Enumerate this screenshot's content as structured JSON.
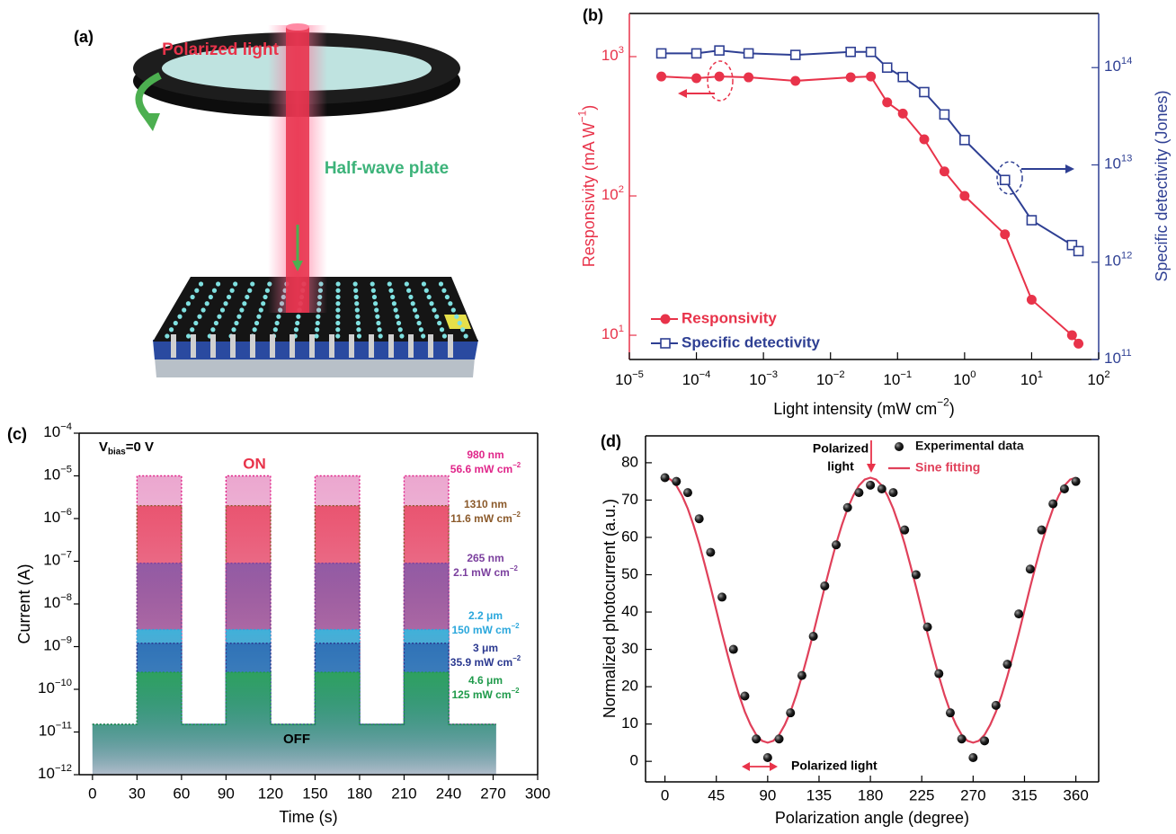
{
  "illustration": {
    "label": "(a)",
    "beam_label": "Polarized light",
    "plate_label": "Half-wave plate"
  },
  "chart_data": [
    {
      "type": "line",
      "label": "(b)",
      "xlabel": {
        "text": "Light intensity (mW cm",
        "sup": "−2",
        "end": ")"
      },
      "ylabel": {
        "text": "Responsivity (mA W",
        "sup": "−1",
        "end": ")"
      },
      "y2label": "Specific detectivity (Jones)",
      "xscale": "log",
      "yscale": "log",
      "y2scale": "log",
      "xlim": [
        1e-05,
        100
      ],
      "xticks": [
        {
          "value": 1e-05,
          "label": "10",
          "sup": "−5"
        },
        {
          "value": 0.0001,
          "label": "10",
          "sup": "−4"
        },
        {
          "value": 0.001,
          "label": "10",
          "sup": "−3"
        },
        {
          "value": 0.01,
          "label": "10",
          "sup": "−2"
        },
        {
          "value": 0.1,
          "label": "10",
          "sup": "−1"
        },
        {
          "value": 1,
          "label": "10",
          "sup": "0"
        },
        {
          "value": 10,
          "label": "10",
          "sup": "1"
        },
        {
          "value": 100,
          "label": "10",
          "sup": "2"
        }
      ],
      "ylim": [
        6.7,
        2040
      ],
      "yticks": [
        {
          "value": 10,
          "label": "10",
          "sup": "1"
        },
        {
          "value": 100,
          "label": "10",
          "sup": "2"
        },
        {
          "value": 1000,
          "label": "10",
          "sup": "3"
        }
      ],
      "y2lim": [
        100000000000.0,
        360000000000000.0
      ],
      "y2ticks": [
        {
          "value": 100000000000.0,
          "label": "10",
          "sup": "11"
        },
        {
          "value": 1000000000000.0,
          "label": "10",
          "sup": "12"
        },
        {
          "value": 10000000000000.0,
          "label": "10",
          "sup": "13"
        },
        {
          "value": 100000000000000.0,
          "label": "10",
          "sup": "14"
        }
      ],
      "ycolor": "#e8334a",
      "y2color": "#2e3f93",
      "legend": "lower left",
      "x": [
        3e-05,
        0.0001,
        0.00022,
        0.0006,
        0.003,
        0.02,
        0.04,
        0.07,
        0.12,
        0.25,
        0.5,
        1,
        4,
        10,
        40,
        50
      ],
      "series": [
        {
          "name": "Responsivity",
          "color": "#e8334a",
          "marker": "circle",
          "values": [
            720,
            700,
            720,
            710,
            670,
            710,
            720,
            470,
            390,
            255,
            150,
            100,
            53,
            18,
            10,
            8.7
          ]
        },
        {
          "name": "Specific detectivity",
          "color": "#2e3f93",
          "marker": "square",
          "axis": "y2",
          "values": [
            140000000000000.0,
            140000000000000.0,
            150000000000000.0,
            140000000000000.0,
            135000000000000.0,
            145000000000000.0,
            145000000000000.0,
            100000000000000.0,
            80000000000000.0,
            56000000000000.0,
            33000000000000.0,
            18000000000000.0,
            7000000000000.0,
            2700000000000.0,
            1500000000000.0,
            1300000000000.0
          ]
        }
      ]
    },
    {
      "type": "area",
      "label": "(c)",
      "xlabel": "Time (s)",
      "ylabel": "Current (A)",
      "yscale": "log",
      "xlim": [
        -9,
        300
      ],
      "xticks": [
        0,
        30,
        60,
        90,
        120,
        150,
        180,
        210,
        240,
        270,
        300
      ],
      "ylim": [
        1e-12,
        0.0001
      ],
      "yticks": [
        {
          "value": 1e-12,
          "label": "10",
          "sup": "−12"
        },
        {
          "value": 1e-11,
          "label": "10",
          "sup": "−11"
        },
        {
          "value": 1e-10,
          "label": "10",
          "sup": "−10"
        },
        {
          "value": 1e-09,
          "label": "10",
          "sup": "−9"
        },
        {
          "value": 1e-08,
          "label": "10",
          "sup": "−8"
        },
        {
          "value": 1e-07,
          "label": "10",
          "sup": "−7"
        },
        {
          "value": 1e-06,
          "label": "10",
          "sup": "−6"
        },
        {
          "value": 1e-05,
          "label": "10",
          "sup": "−5"
        },
        {
          "value": 0.0001,
          "label": "10",
          "sup": "−4"
        }
      ],
      "annotations": {
        "on": "ON",
        "off": "OFF",
        "bias": {
          "text": "V",
          "sub": "bias",
          "end": "=0 V"
        }
      },
      "x": [
        0,
        30,
        30,
        60,
        60,
        90,
        90,
        120,
        120,
        150,
        150,
        180,
        180,
        210,
        210,
        240,
        240,
        272
      ],
      "series": [
        {
          "name": "980 nm",
          "power": "56.6 mW cm",
          "power_sup": "−2",
          "color": "#eaa2cc",
          "label_color": "#e0268a",
          "values": [
            1.5e-11,
            1.5e-11,
            1e-05,
            1e-05,
            1.5e-11,
            1.5e-11,
            1e-05,
            1e-05,
            1.5e-11,
            1.5e-11,
            1e-05,
            1e-05,
            1.5e-11,
            1.5e-11,
            1e-05,
            1e-05,
            1.5e-11,
            1.5e-11
          ]
        },
        {
          "name": "1310 nm",
          "power": "11.6 mW cm",
          "power_sup": "−2",
          "color": "#e9506b",
          "label_color": "#8b5a2b",
          "values": [
            1.5e-11,
            1.5e-11,
            2e-06,
            2e-06,
            1.5e-11,
            1.5e-11,
            2e-06,
            2e-06,
            1.5e-11,
            1.5e-11,
            2e-06,
            2e-06,
            1.5e-11,
            1.5e-11,
            2e-06,
            2e-06,
            1.5e-11,
            1.5e-11
          ]
        },
        {
          "name": "265 nm",
          "power": "2.1 mW cm",
          "power_sup": "−2",
          "color": "#8d5aa6",
          "label_color": "#7b3f9e",
          "values": [
            1.5e-11,
            1.5e-11,
            9e-08,
            9e-08,
            1.5e-11,
            1.5e-11,
            9e-08,
            9e-08,
            1.5e-11,
            1.5e-11,
            9e-08,
            9e-08,
            1.5e-11,
            1.5e-11,
            9e-08,
            9e-08,
            1.5e-11,
            1.5e-11
          ]
        },
        {
          "name": "2.2 μm",
          "power": "150 mW cm",
          "power_sup": "−2",
          "color": "#3bb5dc",
          "label_color": "#2aa7dc",
          "values": [
            1.5e-11,
            1.5e-11,
            2.5e-09,
            2.5e-09,
            1.5e-11,
            1.5e-11,
            2.5e-09,
            2.5e-09,
            1.5e-11,
            1.5e-11,
            2.5e-09,
            2.5e-09,
            1.5e-11,
            1.5e-11,
            2.5e-09,
            2.5e-09,
            1.5e-11,
            1.5e-11
          ]
        },
        {
          "name": "3 μm",
          "power": "35.9 mW cm",
          "power_sup": "−2",
          "color": "#2f6fb5",
          "label_color": "#2b3990",
          "values": [
            1.5e-11,
            1.5e-11,
            1.2e-09,
            1.2e-09,
            1.5e-11,
            1.5e-11,
            1.2e-09,
            1.2e-09,
            1.5e-11,
            1.5e-11,
            1.2e-09,
            1.2e-09,
            1.5e-11,
            1.5e-11,
            1.2e-09,
            1.2e-09,
            1.5e-11,
            1.5e-11
          ]
        },
        {
          "name": "4.6 μm",
          "power": "125 mW cm",
          "power_sup": "−2",
          "color": "#2ea35a",
          "label_color": "#1e9a4a",
          "values": [
            1.5e-11,
            1.5e-11,
            2.5e-10,
            2.5e-10,
            1.5e-11,
            1.5e-11,
            2.5e-10,
            2.5e-10,
            1.5e-11,
            1.5e-11,
            2.5e-10,
            2.5e-10,
            1.5e-11,
            1.5e-11,
            2.5e-10,
            2.5e-10,
            1.5e-11,
            1.5e-11
          ]
        }
      ]
    },
    {
      "type": "scatter",
      "label": "(d)",
      "xlabel": "Polarization angle (degree)",
      "ylabel": "Normalized photocurrent (a.u.)",
      "xlim": [
        -17,
        380
      ],
      "xticks": [
        0,
        45,
        90,
        135,
        180,
        225,
        270,
        315,
        360
      ],
      "ylim": [
        -5.5,
        87.2
      ],
      "yticks": [
        0,
        10,
        20,
        30,
        40,
        50,
        60,
        70,
        80
      ],
      "legend": "upper right",
      "annotations": {
        "top": [
          "Polarized",
          "light"
        ],
        "bottom": "Polarized light"
      },
      "series": [
        {
          "name": "Experimental data",
          "type": "scatter",
          "color": "#111111",
          "x": [
            0,
            10,
            20,
            30,
            40,
            50,
            60,
            70,
            80,
            90,
            100,
            110,
            120,
            130,
            140,
            150,
            160,
            170,
            180,
            190,
            200,
            210,
            220,
            230,
            240,
            250,
            260,
            270,
            280,
            290,
            300,
            310,
            320,
            330,
            340,
            350,
            360
          ],
          "values": [
            76,
            75,
            72,
            65,
            56,
            44,
            30,
            17.5,
            6,
            1,
            6,
            13,
            23,
            33.5,
            47,
            58,
            68,
            72,
            74,
            73,
            72,
            62,
            50,
            36,
            23.5,
            13,
            6,
            1,
            5.5,
            15,
            26,
            39.5,
            51.5,
            62,
            69,
            73,
            75
          ]
        },
        {
          "name": "Sine fitting",
          "type": "line",
          "color": "#e0405a",
          "x": [
            0,
            5,
            10,
            15,
            20,
            25,
            30,
            35,
            40,
            45,
            50,
            55,
            60,
            65,
            70,
            75,
            80,
            85,
            90,
            95,
            100,
            105,
            110,
            115,
            120,
            125,
            130,
            135,
            140,
            145,
            150,
            155,
            160,
            165,
            170,
            175,
            180,
            185,
            190,
            195,
            200,
            205,
            210,
            215,
            220,
            225,
            230,
            235,
            240,
            245,
            250,
            255,
            260,
            265,
            270,
            275,
            280,
            285,
            290,
            295,
            300,
            305,
            310,
            315,
            320,
            325,
            330,
            335,
            340,
            345,
            350,
            355,
            360
          ],
          "values": [
            76,
            75.5,
            73.9,
            71.2,
            67.7,
            63.3,
            58.3,
            52.6,
            46.7,
            40.5,
            34.3,
            28.4,
            22.8,
            17.7,
            13.3,
            9.8,
            7.1,
            5.5,
            5,
            5.5,
            7.1,
            9.8,
            13.3,
            17.7,
            22.8,
            28.4,
            34.3,
            40.5,
            46.7,
            52.6,
            58.3,
            63.3,
            67.7,
            71.2,
            73.9,
            75.5,
            76,
            75.5,
            73.9,
            71.2,
            67.7,
            63.3,
            58.3,
            52.6,
            46.7,
            40.5,
            34.3,
            28.4,
            22.8,
            17.7,
            13.3,
            9.8,
            7.1,
            5.5,
            5,
            5.5,
            7.1,
            9.8,
            13.3,
            17.7,
            22.8,
            28.4,
            34.3,
            40.5,
            46.7,
            52.6,
            58.3,
            63.3,
            67.7,
            71.2,
            73.9,
            75.5,
            76
          ]
        }
      ]
    }
  ]
}
